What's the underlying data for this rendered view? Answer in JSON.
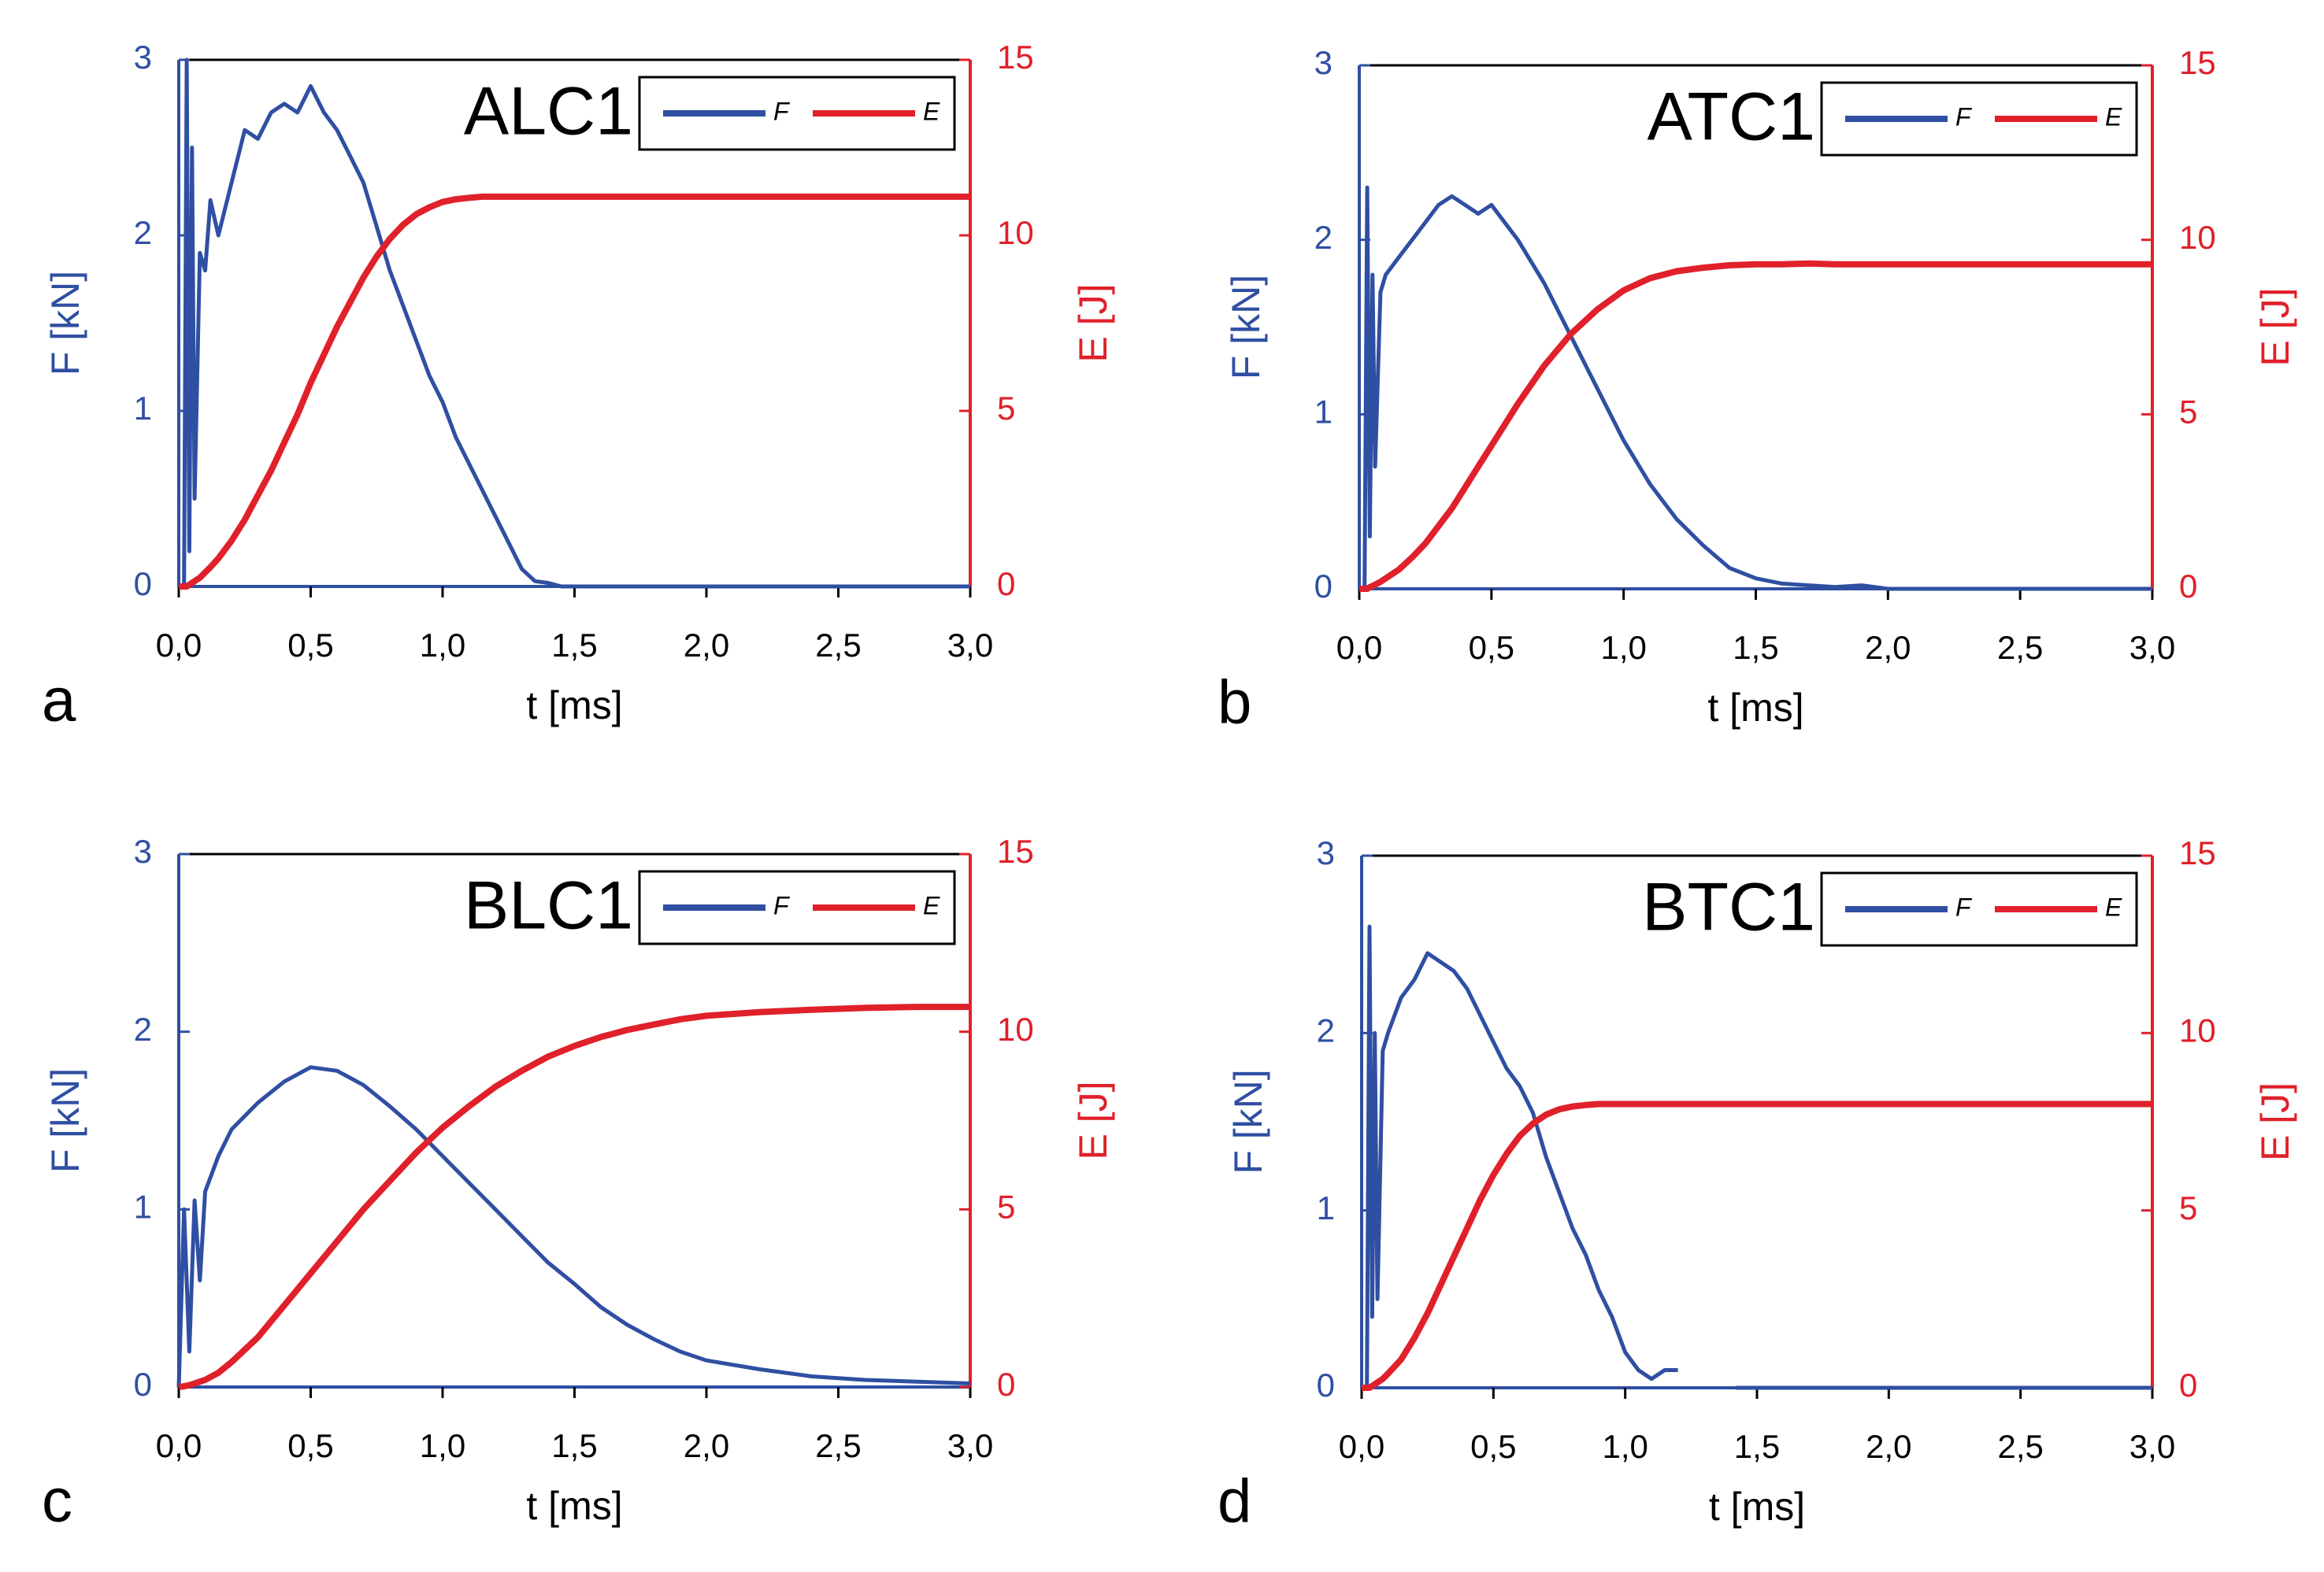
{
  "chart_data": [
    {
      "type": "line",
      "panel_label": "a",
      "annotation": "ALC1",
      "xlabel": "t [ms]",
      "ylabel": "F [kN]",
      "y2label": "E [J]",
      "legend": "upper right",
      "x": [
        0,
        0.02,
        0.03,
        0.04,
        0.05,
        0.06,
        0.08,
        0.1,
        0.12,
        0.15,
        0.2,
        0.25,
        0.3,
        0.35,
        0.4,
        0.45,
        0.5,
        0.55,
        0.6,
        0.65,
        0.7,
        0.75,
        0.8,
        0.85,
        0.9,
        0.95,
        1.0,
        1.05,
        1.1,
        1.15,
        1.2,
        1.25,
        1.3,
        1.35,
        1.4,
        1.45,
        1.5,
        2.0,
        2.5,
        3.0
      ],
      "series": [
        {
          "name": "F",
          "color": "#2f4fa2",
          "values": [
            0,
            0,
            3,
            0.2,
            2.5,
            0.5,
            1.9,
            1.8,
            2.2,
            2.0,
            2.3,
            2.6,
            2.55,
            2.7,
            2.75,
            2.7,
            2.85,
            2.7,
            2.6,
            2.45,
            2.3,
            2.05,
            1.8,
            1.6,
            1.4,
            1.2,
            1.05,
            0.85,
            0.7,
            0.55,
            0.4,
            0.25,
            0.1,
            0.03,
            0.02,
            0,
            0,
            0,
            0,
            0
          ]
        },
        {
          "name": "E",
          "color": "#e0202a",
          "axis": "y2",
          "values": [
            0,
            0,
            0,
            0.05,
            0.1,
            0.15,
            0.25,
            0.4,
            0.55,
            0.8,
            1.3,
            1.9,
            2.6,
            3.3,
            4.1,
            4.9,
            5.8,
            6.6,
            7.4,
            8.1,
            8.8,
            9.4,
            9.9,
            10.3,
            10.6,
            10.8,
            10.95,
            11.03,
            11.07,
            11.1,
            11.1,
            11.1,
            11.1,
            11.1,
            11.1,
            11.1,
            11.1,
            11.1,
            11.1,
            11.1
          ]
        }
      ],
      "xlim": [
        0,
        3
      ],
      "xticks": [
        {
          "value": 0,
          "label": "0,0"
        },
        {
          "value": 0.5,
          "label": "0,5"
        },
        {
          "value": 1,
          "label": "1,0"
        },
        {
          "value": 1.5,
          "label": "1,5"
        },
        {
          "value": 2,
          "label": "2,0"
        },
        {
          "value": 2.5,
          "label": "2,5"
        },
        {
          "value": 3,
          "label": "3,0"
        }
      ],
      "ylim": [
        0,
        3
      ],
      "yticks": [
        0,
        1,
        2,
        3
      ],
      "y2lim": [
        0,
        15
      ],
      "y2ticks": [
        0,
        5,
        10,
        15
      ]
    },
    {
      "type": "line",
      "panel_label": "b",
      "annotation": "ATC1",
      "xlabel": "t [ms]",
      "ylabel": "F [kN]",
      "y2label": "E [J]",
      "legend": "upper right",
      "x": [
        0,
        0.02,
        0.03,
        0.04,
        0.05,
        0.06,
        0.08,
        0.1,
        0.15,
        0.2,
        0.25,
        0.3,
        0.35,
        0.4,
        0.45,
        0.5,
        0.6,
        0.7,
        0.8,
        0.9,
        1.0,
        1.1,
        1.2,
        1.3,
        1.4,
        1.5,
        1.6,
        1.7,
        1.8,
        1.9,
        2.0,
        2.5,
        3.0
      ],
      "series": [
        {
          "name": "F",
          "color": "#2f4fa2",
          "values": [
            0,
            0,
            2.3,
            0.3,
            1.8,
            0.7,
            1.7,
            1.8,
            1.9,
            2.0,
            2.1,
            2.2,
            2.25,
            2.2,
            2.15,
            2.2,
            2.0,
            1.75,
            1.45,
            1.15,
            0.85,
            0.6,
            0.4,
            0.25,
            0.12,
            0.06,
            0.03,
            0.02,
            0.01,
            0.02,
            0,
            0,
            0
          ]
        },
        {
          "name": "E",
          "color": "#e0202a",
          "axis": "y2",
          "values": [
            0,
            0,
            0,
            0.05,
            0.08,
            0.12,
            0.2,
            0.3,
            0.55,
            0.9,
            1.3,
            1.8,
            2.3,
            2.9,
            3.5,
            4.1,
            5.3,
            6.4,
            7.3,
            8.0,
            8.55,
            8.9,
            9.1,
            9.2,
            9.27,
            9.3,
            9.3,
            9.32,
            9.3,
            9.3,
            9.3,
            9.3,
            9.3
          ]
        }
      ],
      "xlim": [
        0,
        3
      ],
      "xticks": [
        {
          "value": 0,
          "label": "0,0"
        },
        {
          "value": 0.5,
          "label": "0,5"
        },
        {
          "value": 1,
          "label": "1,0"
        },
        {
          "value": 1.5,
          "label": "1,5"
        },
        {
          "value": 2,
          "label": "2,0"
        },
        {
          "value": 2.5,
          "label": "2,5"
        },
        {
          "value": 3,
          "label": "3,0"
        }
      ],
      "ylim": [
        0,
        3
      ],
      "yticks": [
        0,
        1,
        2,
        3
      ],
      "y2lim": [
        0,
        15
      ],
      "y2ticks": [
        0,
        5,
        10,
        15
      ]
    },
    {
      "type": "line",
      "panel_label": "c",
      "annotation": "BLC1",
      "xlabel": "t [ms]",
      "ylabel": "F [kN]",
      "y2label": "E [J]",
      "legend": "upper right",
      "x": [
        0,
        0.02,
        0.04,
        0.06,
        0.08,
        0.1,
        0.15,
        0.2,
        0.3,
        0.4,
        0.5,
        0.6,
        0.7,
        0.8,
        0.9,
        1.0,
        1.1,
        1.2,
        1.3,
        1.4,
        1.5,
        1.6,
        1.7,
        1.8,
        1.9,
        2.0,
        2.2,
        2.4,
        2.6,
        2.8,
        3.0
      ],
      "series": [
        {
          "name": "F",
          "color": "#2f4fa2",
          "values": [
            0,
            1.0,
            0.2,
            1.05,
            0.6,
            1.1,
            1.3,
            1.45,
            1.6,
            1.72,
            1.8,
            1.78,
            1.7,
            1.58,
            1.45,
            1.3,
            1.15,
            1.0,
            0.85,
            0.7,
            0.58,
            0.45,
            0.35,
            0.27,
            0.2,
            0.15,
            0.1,
            0.06,
            0.04,
            0.03,
            0.02
          ]
        },
        {
          "name": "E",
          "color": "#e0202a",
          "axis": "y2",
          "values": [
            0,
            0.02,
            0.05,
            0.1,
            0.15,
            0.2,
            0.4,
            0.7,
            1.4,
            2.3,
            3.2,
            4.1,
            5.0,
            5.8,
            6.6,
            7.3,
            7.9,
            8.45,
            8.9,
            9.3,
            9.6,
            9.85,
            10.05,
            10.2,
            10.35,
            10.45,
            10.55,
            10.62,
            10.67,
            10.7,
            10.7
          ]
        }
      ],
      "xlim": [
        0,
        3
      ],
      "xticks": [
        {
          "value": 0,
          "label": "0,0"
        },
        {
          "value": 0.5,
          "label": "0,5"
        },
        {
          "value": 1,
          "label": "1,0"
        },
        {
          "value": 1.5,
          "label": "1,5"
        },
        {
          "value": 2,
          "label": "2,0"
        },
        {
          "value": 2.5,
          "label": "2,5"
        },
        {
          "value": 3,
          "label": "3,0"
        }
      ],
      "ylim": [
        0,
        3
      ],
      "yticks": [
        0,
        1,
        2,
        3
      ],
      "y2lim": [
        0,
        15
      ],
      "y2ticks": [
        0,
        5,
        10,
        15
      ]
    },
    {
      "type": "line",
      "panel_label": "d",
      "annotation": "BTC1",
      "xlabel": "t [ms]",
      "ylabel": "F [kN]",
      "y2label": "E [J]",
      "legend": "upper right",
      "x": [
        0,
        0.02,
        0.03,
        0.04,
        0.05,
        0.06,
        0.08,
        0.1,
        0.15,
        0.2,
        0.25,
        0.3,
        0.35,
        0.4,
        0.45,
        0.5,
        0.55,
        0.6,
        0.65,
        0.7,
        0.75,
        0.8,
        0.85,
        0.9,
        0.95,
        1.0,
        1.05,
        1.1,
        1.15,
        1.2,
        1.3,
        1.42,
        2.0,
        2.5,
        3.0
      ],
      "series": [
        {
          "name": "F",
          "color": "#2f4fa2",
          "values": [
            0,
            0,
            2.6,
            0.4,
            2.0,
            0.5,
            1.9,
            2.0,
            2.2,
            2.3,
            2.45,
            2.4,
            2.35,
            2.25,
            2.1,
            1.95,
            1.8,
            1.7,
            1.55,
            1.3,
            1.1,
            0.9,
            0.75,
            0.55,
            0.4,
            0.2,
            0.1,
            0.05,
            0.1,
            0.1,
            null,
            0,
            0,
            0,
            0
          ]
        },
        {
          "name": "E",
          "color": "#e0202a",
          "axis": "y2",
          "values": [
            0,
            0,
            0,
            0.05,
            0.1,
            0.15,
            0.25,
            0.4,
            0.8,
            1.4,
            2.1,
            2.9,
            3.7,
            4.5,
            5.3,
            6.0,
            6.6,
            7.1,
            7.45,
            7.7,
            7.85,
            7.93,
            7.97,
            8.0,
            8.0,
            8.0,
            8.0,
            8.0,
            8.0,
            8.0,
            8.0,
            8.0,
            8.0,
            8.0,
            8.0
          ]
        }
      ],
      "xlim": [
        0,
        3
      ],
      "xticks": [
        {
          "value": 0,
          "label": "0,0"
        },
        {
          "value": 0.5,
          "label": "0,5"
        },
        {
          "value": 1,
          "label": "1,0"
        },
        {
          "value": 1.5,
          "label": "1,5"
        },
        {
          "value": 2,
          "label": "2,0"
        },
        {
          "value": 2.5,
          "label": "2,5"
        },
        {
          "value": 3,
          "label": "3,0"
        }
      ],
      "ylim": [
        0,
        3
      ],
      "yticks": [
        0,
        1,
        2,
        3
      ],
      "y2lim": [
        0,
        15
      ],
      "y2ticks": [
        0,
        5,
        10,
        15
      ]
    }
  ]
}
